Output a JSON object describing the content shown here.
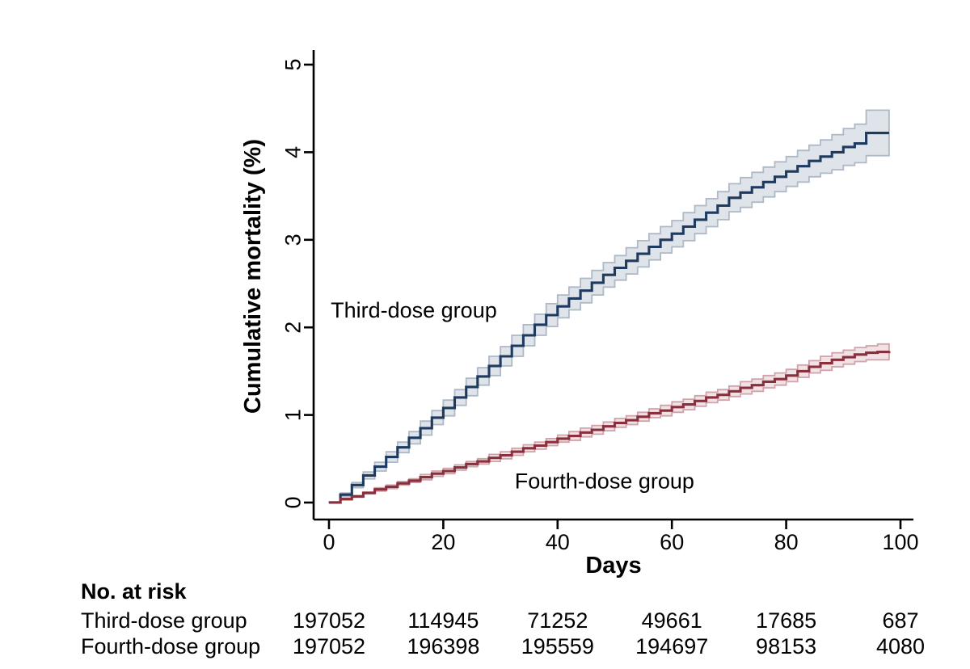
{
  "figure": {
    "background": "#ffffff",
    "axis_color": "#000000",
    "text_color": "#000000"
  },
  "chart_data": {
    "type": "line",
    "variant": "step-cumulative-incidence-with-ci-bands",
    "title": "",
    "xlabel": "Days",
    "ylabel": "Cumulative mortality (%)",
    "xlim": [
      0,
      100
    ],
    "ylim": [
      0,
      5
    ],
    "xticks": [
      0,
      20,
      40,
      60,
      80,
      100
    ],
    "yticks": [
      0,
      1,
      2,
      3,
      4,
      5
    ],
    "grid": false,
    "legend_position": "inline-annotations",
    "days": [
      0,
      2,
      4,
      6,
      8,
      10,
      12,
      14,
      16,
      18,
      20,
      22,
      24,
      26,
      28,
      30,
      32,
      34,
      36,
      38,
      40,
      42,
      44,
      46,
      48,
      50,
      52,
      54,
      56,
      58,
      60,
      62,
      64,
      66,
      68,
      70,
      72,
      74,
      76,
      78,
      80,
      82,
      84,
      86,
      88,
      90,
      92,
      94,
      96,
      98
    ],
    "series": [
      {
        "name": "Third-dose group",
        "line_color": "#1f3a5f",
        "band_fill": "#dfe4ea",
        "band_edge": "#aeb9c6",
        "values": [
          0.0,
          0.09,
          0.2,
          0.31,
          0.41,
          0.52,
          0.63,
          0.74,
          0.85,
          0.97,
          1.08,
          1.2,
          1.32,
          1.44,
          1.56,
          1.67,
          1.79,
          1.91,
          2.03,
          2.14,
          2.24,
          2.33,
          2.42,
          2.51,
          2.6,
          2.68,
          2.76,
          2.84,
          2.92,
          3.0,
          3.07,
          3.15,
          3.23,
          3.31,
          3.39,
          3.48,
          3.54,
          3.6,
          3.66,
          3.72,
          3.78,
          3.84,
          3.9,
          3.95,
          4.0,
          4.06,
          4.1,
          4.22,
          4.22,
          4.22
        ],
        "ci_half": [
          0.01,
          0.02,
          0.03,
          0.04,
          0.05,
          0.06,
          0.06,
          0.07,
          0.08,
          0.08,
          0.09,
          0.09,
          0.1,
          0.1,
          0.11,
          0.11,
          0.12,
          0.12,
          0.12,
          0.13,
          0.13,
          0.13,
          0.14,
          0.14,
          0.14,
          0.14,
          0.15,
          0.15,
          0.15,
          0.15,
          0.15,
          0.16,
          0.16,
          0.16,
          0.16,
          0.16,
          0.17,
          0.17,
          0.17,
          0.17,
          0.17,
          0.18,
          0.18,
          0.19,
          0.2,
          0.21,
          0.22,
          0.26,
          0.26,
          0.26
        ],
        "label": {
          "text": "Third-dose group",
          "day": 0.3,
          "pct": 2.2,
          "anchor": "start"
        }
      },
      {
        "name": "Fourth-dose group",
        "line_color": "#8c2f3c",
        "band_fill": "#f1e2e5",
        "band_edge": "#cfa3ab",
        "values": [
          0.0,
          0.04,
          0.07,
          0.11,
          0.15,
          0.18,
          0.22,
          0.25,
          0.29,
          0.33,
          0.36,
          0.4,
          0.44,
          0.47,
          0.51,
          0.54,
          0.58,
          0.62,
          0.65,
          0.69,
          0.73,
          0.76,
          0.8,
          0.83,
          0.87,
          0.91,
          0.94,
          0.98,
          1.02,
          1.05,
          1.09,
          1.12,
          1.16,
          1.2,
          1.23,
          1.27,
          1.31,
          1.34,
          1.38,
          1.41,
          1.45,
          1.5,
          1.55,
          1.59,
          1.63,
          1.66,
          1.69,
          1.71,
          1.72,
          1.73
        ],
        "ci_half": [
          0.0,
          0.01,
          0.01,
          0.01,
          0.02,
          0.02,
          0.02,
          0.02,
          0.03,
          0.03,
          0.03,
          0.03,
          0.03,
          0.03,
          0.04,
          0.04,
          0.04,
          0.04,
          0.04,
          0.04,
          0.04,
          0.05,
          0.05,
          0.05,
          0.05,
          0.05,
          0.05,
          0.05,
          0.05,
          0.06,
          0.06,
          0.06,
          0.06,
          0.06,
          0.06,
          0.06,
          0.07,
          0.07,
          0.07,
          0.07,
          0.07,
          0.07,
          0.07,
          0.08,
          0.08,
          0.08,
          0.08,
          0.08,
          0.09,
          0.09
        ],
        "label": {
          "text": "Fourth-dose group",
          "day": 32.5,
          "pct": 0.25,
          "anchor": "start"
        }
      }
    ],
    "risk_table": {
      "title": "No. at risk",
      "timepoints": [
        0,
        20,
        40,
        60,
        80,
        100
      ],
      "rows": [
        {
          "label": "Third-dose group",
          "counts": [
            "197052",
            "114945",
            "71252",
            "49661",
            "17685",
            "687"
          ]
        },
        {
          "label": "Fourth-dose group",
          "counts": [
            "197052",
            "196398",
            "195559",
            "194697",
            "98153",
            "4080"
          ]
        }
      ]
    }
  }
}
